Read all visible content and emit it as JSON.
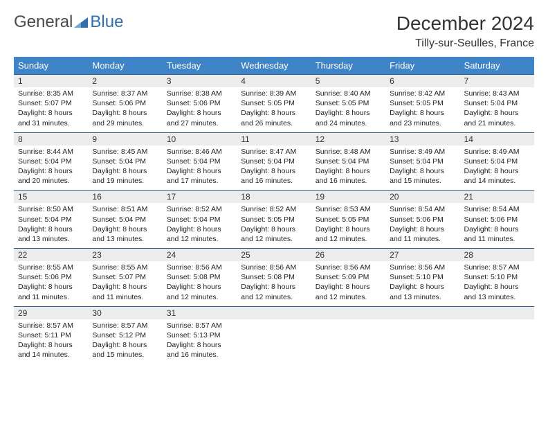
{
  "logo": {
    "text1": "General",
    "text2": "Blue",
    "color1": "#5a5a5a",
    "color2": "#2f6fb0",
    "icon_color": "#2f6fb0"
  },
  "title": "December 2024",
  "subtitle": "Tilly-sur-Seulles, France",
  "header_bg": "#3e84c6",
  "header_fg": "#ffffff",
  "daynum_bg": "#ececec",
  "rule_color": "#2f5e8a",
  "weekdays": [
    "Sunday",
    "Monday",
    "Tuesday",
    "Wednesday",
    "Thursday",
    "Friday",
    "Saturday"
  ],
  "weeks": [
    [
      {
        "n": "1",
        "sr": "8:35 AM",
        "ss": "5:07 PM",
        "dl": "8 hours and 31 minutes."
      },
      {
        "n": "2",
        "sr": "8:37 AM",
        "ss": "5:06 PM",
        "dl": "8 hours and 29 minutes."
      },
      {
        "n": "3",
        "sr": "8:38 AM",
        "ss": "5:06 PM",
        "dl": "8 hours and 27 minutes."
      },
      {
        "n": "4",
        "sr": "8:39 AM",
        "ss": "5:05 PM",
        "dl": "8 hours and 26 minutes."
      },
      {
        "n": "5",
        "sr": "8:40 AM",
        "ss": "5:05 PM",
        "dl": "8 hours and 24 minutes."
      },
      {
        "n": "6",
        "sr": "8:42 AM",
        "ss": "5:05 PM",
        "dl": "8 hours and 23 minutes."
      },
      {
        "n": "7",
        "sr": "8:43 AM",
        "ss": "5:04 PM",
        "dl": "8 hours and 21 minutes."
      }
    ],
    [
      {
        "n": "8",
        "sr": "8:44 AM",
        "ss": "5:04 PM",
        "dl": "8 hours and 20 minutes."
      },
      {
        "n": "9",
        "sr": "8:45 AM",
        "ss": "5:04 PM",
        "dl": "8 hours and 19 minutes."
      },
      {
        "n": "10",
        "sr": "8:46 AM",
        "ss": "5:04 PM",
        "dl": "8 hours and 17 minutes."
      },
      {
        "n": "11",
        "sr": "8:47 AM",
        "ss": "5:04 PM",
        "dl": "8 hours and 16 minutes."
      },
      {
        "n": "12",
        "sr": "8:48 AM",
        "ss": "5:04 PM",
        "dl": "8 hours and 16 minutes."
      },
      {
        "n": "13",
        "sr": "8:49 AM",
        "ss": "5:04 PM",
        "dl": "8 hours and 15 minutes."
      },
      {
        "n": "14",
        "sr": "8:49 AM",
        "ss": "5:04 PM",
        "dl": "8 hours and 14 minutes."
      }
    ],
    [
      {
        "n": "15",
        "sr": "8:50 AM",
        "ss": "5:04 PM",
        "dl": "8 hours and 13 minutes."
      },
      {
        "n": "16",
        "sr": "8:51 AM",
        "ss": "5:04 PM",
        "dl": "8 hours and 13 minutes."
      },
      {
        "n": "17",
        "sr": "8:52 AM",
        "ss": "5:04 PM",
        "dl": "8 hours and 12 minutes."
      },
      {
        "n": "18",
        "sr": "8:52 AM",
        "ss": "5:05 PM",
        "dl": "8 hours and 12 minutes."
      },
      {
        "n": "19",
        "sr": "8:53 AM",
        "ss": "5:05 PM",
        "dl": "8 hours and 12 minutes."
      },
      {
        "n": "20",
        "sr": "8:54 AM",
        "ss": "5:06 PM",
        "dl": "8 hours and 11 minutes."
      },
      {
        "n": "21",
        "sr": "8:54 AM",
        "ss": "5:06 PM",
        "dl": "8 hours and 11 minutes."
      }
    ],
    [
      {
        "n": "22",
        "sr": "8:55 AM",
        "ss": "5:06 PM",
        "dl": "8 hours and 11 minutes."
      },
      {
        "n": "23",
        "sr": "8:55 AM",
        "ss": "5:07 PM",
        "dl": "8 hours and 11 minutes."
      },
      {
        "n": "24",
        "sr": "8:56 AM",
        "ss": "5:08 PM",
        "dl": "8 hours and 12 minutes."
      },
      {
        "n": "25",
        "sr": "8:56 AM",
        "ss": "5:08 PM",
        "dl": "8 hours and 12 minutes."
      },
      {
        "n": "26",
        "sr": "8:56 AM",
        "ss": "5:09 PM",
        "dl": "8 hours and 12 minutes."
      },
      {
        "n": "27",
        "sr": "8:56 AM",
        "ss": "5:10 PM",
        "dl": "8 hours and 13 minutes."
      },
      {
        "n": "28",
        "sr": "8:57 AM",
        "ss": "5:10 PM",
        "dl": "8 hours and 13 minutes."
      }
    ],
    [
      {
        "n": "29",
        "sr": "8:57 AM",
        "ss": "5:11 PM",
        "dl": "8 hours and 14 minutes."
      },
      {
        "n": "30",
        "sr": "8:57 AM",
        "ss": "5:12 PM",
        "dl": "8 hours and 15 minutes."
      },
      {
        "n": "31",
        "sr": "8:57 AM",
        "ss": "5:13 PM",
        "dl": "8 hours and 16 minutes."
      },
      null,
      null,
      null,
      null
    ]
  ],
  "labels": {
    "sunrise": "Sunrise:",
    "sunset": "Sunset:",
    "daylight": "Daylight:"
  }
}
